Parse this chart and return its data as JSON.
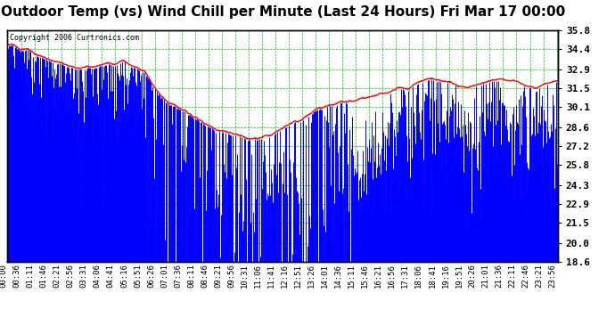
{
  "title": "Outdoor Temp (vs) Wind Chill per Minute (Last 24 Hours) Fri Mar 17 00:00",
  "copyright": "Copyright 2006 Curtronics.com",
  "ylabel_right_ticks": [
    35.8,
    34.4,
    32.9,
    31.5,
    30.1,
    28.6,
    27.2,
    25.8,
    24.3,
    22.9,
    21.5,
    20.0,
    18.6
  ],
  "ylim": [
    18.6,
    35.8
  ],
  "xlim_minutes": [
    0,
    1439
  ],
  "x_tick_labels": [
    "00:00",
    "00:36",
    "01:11",
    "01:46",
    "02:21",
    "02:56",
    "03:31",
    "04:06",
    "04:41",
    "05:16",
    "05:51",
    "06:26",
    "07:01",
    "07:36",
    "08:11",
    "08:46",
    "09:21",
    "09:56",
    "10:31",
    "11:06",
    "11:41",
    "12:16",
    "12:51",
    "13:26",
    "14:01",
    "14:36",
    "15:11",
    "15:46",
    "16:21",
    "16:56",
    "17:31",
    "18:06",
    "18:41",
    "19:16",
    "19:51",
    "20:26",
    "21:01",
    "21:36",
    "22:11",
    "22:46",
    "23:21",
    "23:56"
  ],
  "x_tick_minutes": [
    0,
    36,
    71,
    106,
    141,
    176,
    211,
    246,
    281,
    316,
    351,
    386,
    421,
    456,
    491,
    526,
    561,
    596,
    631,
    666,
    701,
    736,
    771,
    806,
    841,
    876,
    911,
    946,
    981,
    1016,
    1051,
    1086,
    1121,
    1156,
    1191,
    1226,
    1261,
    1296,
    1331,
    1366,
    1401,
    1436
  ],
  "bg_color": "#ffffff",
  "plot_bg_color": "#ffffff",
  "grid_color": "#00cc00",
  "red_line_color": "#ff0000",
  "blue_bar_color": "#0000ff",
  "title_color": "#000000",
  "title_fontsize": 11,
  "copyright_fontsize": 6,
  "tick_label_fontsize": 6.5,
  "ylabel_fontsize": 8,
  "outdoor_temp_keypoints": [
    [
      0,
      34.8
    ],
    [
      60,
      34.2
    ],
    [
      120,
      33.5
    ],
    [
      180,
      33.0
    ],
    [
      240,
      33.2
    ],
    [
      300,
      33.5
    ],
    [
      360,
      32.8
    ],
    [
      380,
      31.8
    ],
    [
      400,
      31.0
    ],
    [
      420,
      30.5
    ],
    [
      450,
      30.0
    ],
    [
      480,
      29.5
    ],
    [
      510,
      29.0
    ],
    [
      540,
      28.5
    ],
    [
      570,
      28.2
    ],
    [
      600,
      28.0
    ],
    [
      630,
      27.8
    ],
    [
      660,
      27.8
    ],
    [
      690,
      28.0
    ],
    [
      720,
      28.5
    ],
    [
      750,
      29.0
    ],
    [
      780,
      29.5
    ],
    [
      810,
      30.0
    ],
    [
      840,
      30.2
    ],
    [
      870,
      30.5
    ],
    [
      900,
      30.5
    ],
    [
      930,
      30.8
    ],
    [
      960,
      31.0
    ],
    [
      990,
      31.2
    ],
    [
      1020,
      31.5
    ],
    [
      1050,
      31.5
    ],
    [
      1080,
      32.0
    ],
    [
      1110,
      32.2
    ],
    [
      1140,
      32.0
    ],
    [
      1170,
      31.8
    ],
    [
      1200,
      31.5
    ],
    [
      1230,
      31.8
    ],
    [
      1260,
      32.0
    ],
    [
      1290,
      32.2
    ],
    [
      1320,
      32.0
    ],
    [
      1350,
      31.8
    ],
    [
      1380,
      31.5
    ],
    [
      1410,
      31.8
    ],
    [
      1439,
      32.0
    ]
  ],
  "wind_chill_envelope_keypoints": [
    [
      0,
      34.0
    ],
    [
      60,
      33.0
    ],
    [
      120,
      32.0
    ],
    [
      180,
      31.0
    ],
    [
      240,
      31.5
    ],
    [
      300,
      32.0
    ],
    [
      350,
      31.0
    ],
    [
      380,
      29.5
    ],
    [
      400,
      28.0
    ],
    [
      420,
      27.0
    ],
    [
      440,
      26.0
    ],
    [
      460,
      25.0
    ],
    [
      480,
      24.0
    ],
    [
      500,
      23.5
    ],
    [
      520,
      23.0
    ],
    [
      540,
      22.5
    ],
    [
      560,
      22.0
    ],
    [
      580,
      21.5
    ],
    [
      600,
      21.0
    ],
    [
      620,
      20.5
    ],
    [
      640,
      20.0
    ],
    [
      660,
      19.5
    ],
    [
      680,
      19.0
    ],
    [
      700,
      18.9
    ],
    [
      720,
      19.5
    ],
    [
      740,
      20.0
    ],
    [
      760,
      20.5
    ],
    [
      780,
      21.0
    ],
    [
      800,
      21.5
    ],
    [
      820,
      22.0
    ],
    [
      840,
      22.5
    ],
    [
      860,
      23.0
    ],
    [
      880,
      23.5
    ],
    [
      900,
      24.0
    ],
    [
      920,
      24.5
    ],
    [
      940,
      25.0
    ],
    [
      960,
      25.5
    ],
    [
      980,
      26.0
    ],
    [
      1000,
      26.5
    ],
    [
      1020,
      27.0
    ],
    [
      1040,
      27.5
    ],
    [
      1060,
      28.0
    ],
    [
      1080,
      28.5
    ],
    [
      1100,
      29.0
    ],
    [
      1120,
      29.0
    ],
    [
      1140,
      28.5
    ],
    [
      1160,
      28.0
    ],
    [
      1180,
      27.5
    ],
    [
      1200,
      27.0
    ],
    [
      1220,
      27.5
    ],
    [
      1240,
      28.0
    ],
    [
      1260,
      28.5
    ],
    [
      1280,
      28.5
    ],
    [
      1300,
      28.0
    ],
    [
      1320,
      27.5
    ],
    [
      1340,
      27.0
    ],
    [
      1360,
      27.5
    ],
    [
      1380,
      28.0
    ],
    [
      1400,
      27.5
    ],
    [
      1439,
      27.0
    ]
  ]
}
